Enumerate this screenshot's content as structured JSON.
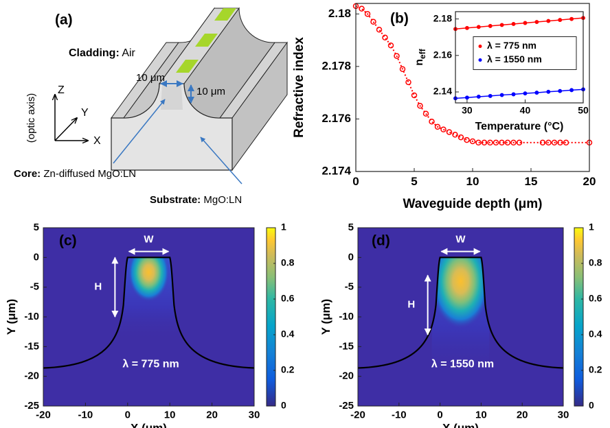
{
  "diagram": {
    "panel_label": "(a)",
    "cladding_label": "Cladding:",
    "cladding_value": "Air",
    "width_label": "10 μm",
    "depth_label": "10 μm",
    "axis_z": "Z",
    "axis_y": "Y",
    "axis_x": "X",
    "optic_axis": "(optic axis)",
    "core_label": "Core:",
    "core_value": "Zn-diffused MgO:LN",
    "substrate_label": "Substrate:",
    "substrate_value": "MgO:LN"
  },
  "chart_data": [
    {
      "type": "line",
      "panel_label": "(b)",
      "xlabel": "Waveguide depth (μm)",
      "ylabel": "Refractive index",
      "color": "#ff0000",
      "line_style": "dotted",
      "marker": "open-circle",
      "x": [
        0,
        0.5,
        1,
        1.5,
        2,
        2.5,
        3,
        3.5,
        4,
        4.5,
        5,
        5.5,
        6,
        6.5,
        7,
        7.5,
        8,
        8.5,
        9,
        9.5,
        10,
        10.5,
        11,
        11.5,
        12,
        12.5,
        13,
        13.5,
        14,
        16,
        16.5,
        17,
        17.5,
        18,
        20
      ],
      "values": [
        2.1803,
        2.1802,
        2.18,
        2.1797,
        2.1794,
        2.1791,
        2.1788,
        2.1784,
        2.1779,
        2.1774,
        2.1769,
        2.1765,
        2.1762,
        2.1759,
        2.1757,
        2.1756,
        2.1755,
        2.1754,
        2.1753,
        2.1752,
        2.17515,
        2.1751,
        2.1751,
        2.1751,
        2.1751,
        2.1751,
        2.1751,
        2.1751,
        2.1751,
        2.1751,
        2.1751,
        2.1751,
        2.1751,
        2.1751,
        2.1751
      ],
      "xlim": [
        0,
        20
      ],
      "ylim": [
        2.174,
        2.1804
      ],
      "xticks": [
        0,
        5,
        10,
        15,
        20
      ],
      "yticks": [
        2.174,
        2.176,
        2.178,
        2.18
      ],
      "grid": false
    },
    {
      "type": "line",
      "xlabel": "Temperature (°C)",
      "ylabel": "n",
      "ylabel_sub": "eff",
      "legend": "center",
      "line_style": "solid",
      "marker": "dot",
      "x": [
        28,
        30,
        32,
        34,
        36,
        38,
        40,
        42,
        44,
        46,
        48,
        50
      ],
      "series": [
        {
          "name": "λ = 775 nm",
          "color": "#ff0000",
          "values": [
            2.1745,
            2.17505,
            2.1756,
            2.17615,
            2.1767,
            2.17725,
            2.1778,
            2.17835,
            2.1789,
            2.17945,
            2.18,
            2.18055
          ]
        },
        {
          "name": "λ = 1550 nm",
          "color": "#0000ff",
          "values": [
            2.1365,
            2.1369,
            2.1374,
            2.1378,
            2.1383,
            2.1387,
            2.1392,
            2.1396,
            2.1401,
            2.1405,
            2.141,
            2.1414
          ]
        }
      ],
      "xlim": [
        28,
        50
      ],
      "ylim": [
        2.134,
        2.184
      ],
      "xticks": [
        30,
        40,
        50
      ],
      "yticks": [
        2.14,
        2.16,
        2.18
      ],
      "grid": false
    },
    {
      "type": "heatmap",
      "panel_label": "(c)",
      "xlabel": "X (μm)",
      "ylabel": "Y (μm)",
      "annotation": "λ = 775 nm",
      "width_label": "W",
      "height_label": "H",
      "xlim": [
        -20,
        30
      ],
      "ylim": [
        -25,
        5
      ],
      "xticks": [
        -20,
        -10,
        0,
        10,
        20,
        30
      ],
      "yticks": [
        5,
        0,
        -5,
        -10,
        -15,
        -20,
        -25
      ],
      "colorbar": {
        "lim": [
          0,
          1
        ],
        "ticks": [
          0,
          0.2,
          0.4,
          0.6,
          0.8,
          1
        ]
      }
    },
    {
      "type": "heatmap",
      "panel_label": "(d)",
      "xlabel": "X (μm)",
      "ylabel": "Y (μm)",
      "annotation": "λ = 1550 nm",
      "width_label": "W",
      "height_label": "H",
      "xlim": [
        -20,
        30
      ],
      "ylim": [
        -25,
        5
      ],
      "xticks": [
        -20,
        -10,
        0,
        10,
        20,
        30
      ],
      "yticks": [
        5,
        0,
        -5,
        -10,
        -15,
        -20,
        -25
      ],
      "colorbar": {
        "lim": [
          0,
          1
        ],
        "ticks": [
          0,
          0.2,
          0.4,
          0.6,
          0.8,
          1
        ]
      }
    }
  ]
}
